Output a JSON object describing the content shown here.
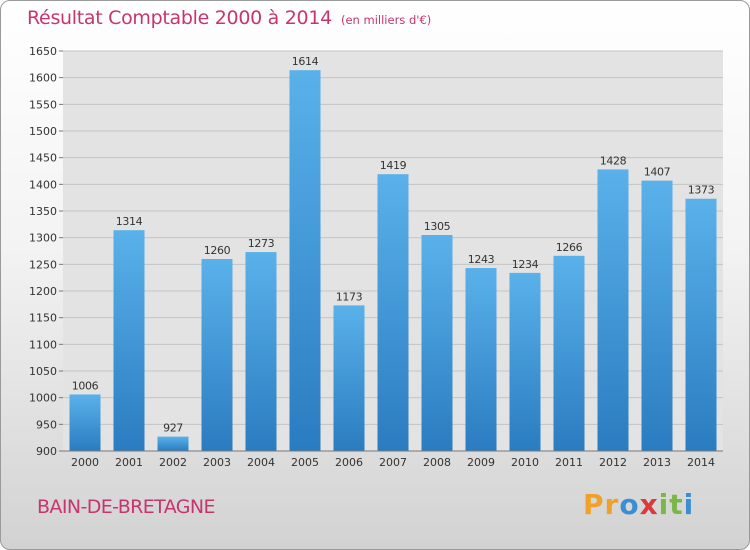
{
  "title": "Résultat Comptable 2000 à 2014",
  "subtitle": "(en milliers d'€)",
  "commune": "BAIN-DE-BRETAGNE",
  "brand": {
    "letters": [
      "P",
      "r",
      "o",
      "x",
      "i",
      "t",
      "i"
    ],
    "colors": [
      "#f0a12a",
      "#f0a12a",
      "#3a8fd4",
      "#d93a3a",
      "#7ab648",
      "#7ab648",
      "#3a8fd4"
    ]
  },
  "colors": {
    "bar_top": "#5ab1ea",
    "bar_bottom": "#2a7cc0",
    "accent": "#c8356e"
  },
  "chart_data": {
    "type": "bar",
    "title": "Résultat Comptable 2000 à 2014",
    "xlabel": "",
    "ylabel": "",
    "categories": [
      "2000",
      "2001",
      "2002",
      "2003",
      "2004",
      "2005",
      "2006",
      "2007",
      "2008",
      "2009",
      "2010",
      "2011",
      "2012",
      "2013",
      "2014"
    ],
    "values": [
      1006,
      1314,
      927,
      1260,
      1273,
      1614,
      1173,
      1419,
      1305,
      1243,
      1234,
      1266,
      1428,
      1407,
      1373
    ],
    "ylim": [
      900,
      1650
    ],
    "yticks": [
      900,
      950,
      1000,
      1050,
      1100,
      1150,
      1200,
      1250,
      1300,
      1350,
      1400,
      1450,
      1500,
      1550,
      1600,
      1650
    ],
    "grid": true
  }
}
